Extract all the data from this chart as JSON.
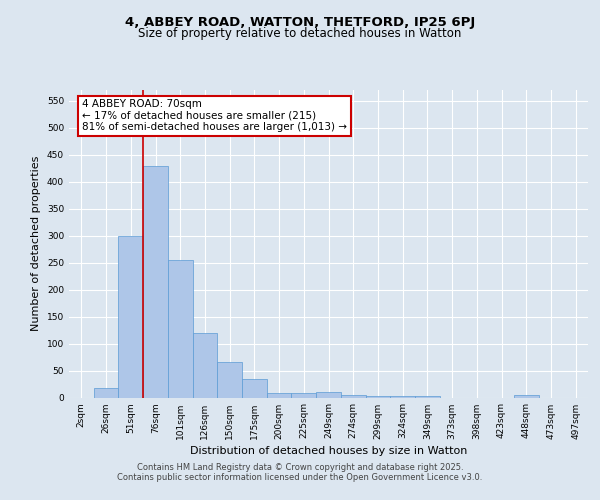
{
  "title_line1": "4, ABBEY ROAD, WATTON, THETFORD, IP25 6PJ",
  "title_line2": "Size of property relative to detached houses in Watton",
  "xlabel": "Distribution of detached houses by size in Watton",
  "ylabel": "Number of detached properties",
  "bar_labels": [
    "2sqm",
    "26sqm",
    "51sqm",
    "76sqm",
    "101sqm",
    "126sqm",
    "150sqm",
    "175sqm",
    "200sqm",
    "225sqm",
    "249sqm",
    "274sqm",
    "299sqm",
    "324sqm",
    "349sqm",
    "373sqm",
    "398sqm",
    "423sqm",
    "448sqm",
    "473sqm",
    "497sqm"
  ],
  "bar_values": [
    0,
    18,
    300,
    430,
    255,
    120,
    65,
    35,
    8,
    8,
    11,
    5,
    3,
    2,
    2,
    0,
    0,
    0,
    5,
    0,
    0
  ],
  "bar_color": "#aec6e8",
  "bar_edge_color": "#5b9bd5",
  "vline_color": "#cc0000",
  "vline_xindex": 2.5,
  "annotation_text": "4 ABBEY ROAD: 70sqm\n← 17% of detached houses are smaller (215)\n81% of semi-detached houses are larger (1,013) →",
  "annotation_box_color": "#cc0000",
  "annotation_fill": "white",
  "ylim": [
    0,
    570
  ],
  "yticks": [
    0,
    50,
    100,
    150,
    200,
    250,
    300,
    350,
    400,
    450,
    500,
    550
  ],
  "background_color": "#dce6f0",
  "plot_background": "#dce6f0",
  "footer_line1": "Contains HM Land Registry data © Crown copyright and database right 2025.",
  "footer_line2": "Contains public sector information licensed under the Open Government Licence v3.0.",
  "title_fontsize": 9.5,
  "subtitle_fontsize": 8.5,
  "tick_fontsize": 6.5,
  "axis_label_fontsize": 8,
  "footer_fontsize": 6,
  "annotation_fontsize": 7.5
}
